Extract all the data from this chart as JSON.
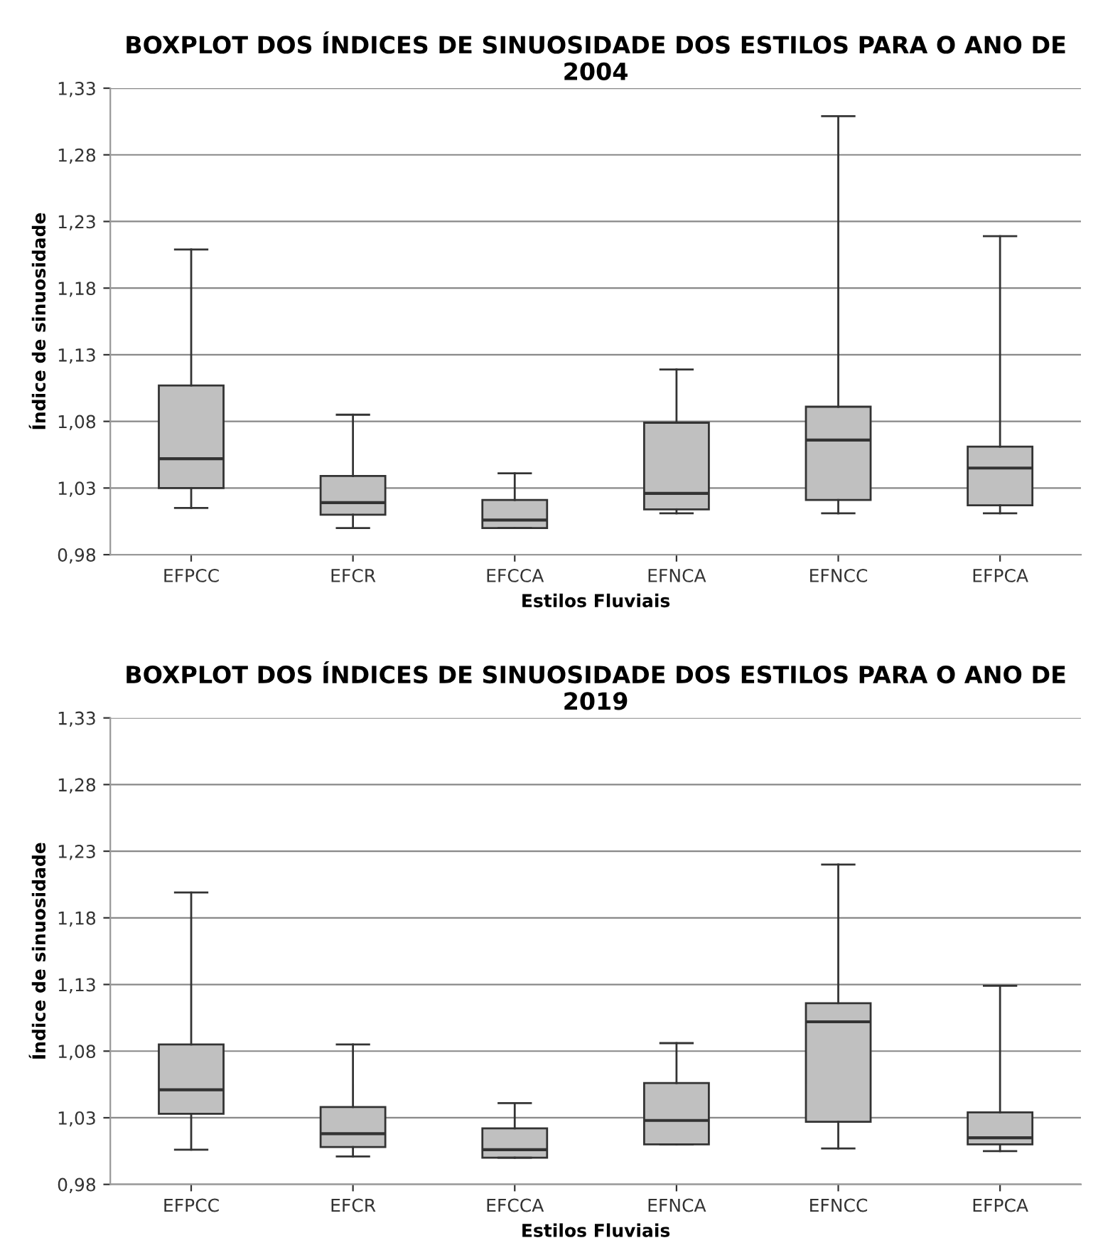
{
  "chart_data": [
    {
      "type": "box",
      "title": "BOXPLOT DOS ÍNDICES DE SINUOSIDADE DOS ESTILOS PARA O ANO DE 2004",
      "xlabel": "Estilos Fluviais",
      "ylabel": "Índice de sinuosidade",
      "color": "#c0c0c0",
      "grid": "y",
      "categories": [
        "EFPCC",
        "EFCR",
        "EFCCA",
        "EFNCA",
        "EFNCC",
        "EFPCA"
      ],
      "boxes": [
        {
          "low": 1.015,
          "q1": 1.03,
          "median": 1.052,
          "q3": 1.107,
          "high": 1.209
        },
        {
          "low": 1.0,
          "q1": 1.01,
          "median": 1.019,
          "q3": 1.039,
          "high": 1.085
        },
        {
          "low": 1.0,
          "q1": 1.0,
          "median": 1.006,
          "q3": 1.021,
          "high": 1.041
        },
        {
          "low": 1.011,
          "q1": 1.014,
          "median": 1.026,
          "q3": 1.079,
          "high": 1.119
        },
        {
          "low": 1.011,
          "q1": 1.021,
          "median": 1.066,
          "q3": 1.091,
          "high": 1.309
        },
        {
          "low": 1.011,
          "q1": 1.017,
          "median": 1.045,
          "q3": 1.061,
          "high": 1.219
        }
      ],
      "ylim": [
        0.98,
        1.33
      ],
      "yticks": [
        {
          "value": 0.98,
          "label": "0,98"
        },
        {
          "value": 1.03,
          "label": "1,03"
        },
        {
          "value": 1.08,
          "label": "1,08"
        },
        {
          "value": 1.13,
          "label": "1,13"
        },
        {
          "value": 1.18,
          "label": "1,18"
        },
        {
          "value": 1.23,
          "label": "1,23"
        },
        {
          "value": 1.28,
          "label": "1,28"
        },
        {
          "value": 1.33,
          "label": "1,33"
        }
      ]
    },
    {
      "type": "box",
      "title": "BOXPLOT DOS ÍNDICES DE SINUOSIDADE DOS ESTILOS PARA O ANO DE 2019",
      "xlabel": "Estilos Fluviais",
      "ylabel": "Índice de sinuosidade",
      "color": "#c0c0c0",
      "grid": "y",
      "categories": [
        "EFPCC",
        "EFCR",
        "EFCCA",
        "EFNCA",
        "EFNCC",
        "EFPCA"
      ],
      "boxes": [
        {
          "low": 1.006,
          "q1": 1.033,
          "median": 1.051,
          "q3": 1.085,
          "high": 1.199
        },
        {
          "low": 1.001,
          "q1": 1.008,
          "median": 1.018,
          "q3": 1.038,
          "high": 1.085
        },
        {
          "low": 1.0,
          "q1": 1.0,
          "median": 1.006,
          "q3": 1.022,
          "high": 1.041
        },
        {
          "low": 1.01,
          "q1": 1.01,
          "median": 1.028,
          "q3": 1.056,
          "high": 1.086
        },
        {
          "low": 1.007,
          "q1": 1.027,
          "median": 1.102,
          "q3": 1.116,
          "high": 1.22
        },
        {
          "low": 1.005,
          "q1": 1.01,
          "median": 1.015,
          "q3": 1.034,
          "high": 1.129
        }
      ],
      "ylim": [
        0.98,
        1.33
      ],
      "yticks": [
        {
          "value": 0.98,
          "label": "0,98"
        },
        {
          "value": 1.03,
          "label": "1,03"
        },
        {
          "value": 1.08,
          "label": "1,08"
        },
        {
          "value": 1.13,
          "label": "1,13"
        },
        {
          "value": 1.18,
          "label": "1,18"
        },
        {
          "value": 1.23,
          "label": "1,23"
        },
        {
          "value": 1.28,
          "label": "1,28"
        },
        {
          "value": 1.33,
          "label": "1,33"
        }
      ]
    }
  ]
}
